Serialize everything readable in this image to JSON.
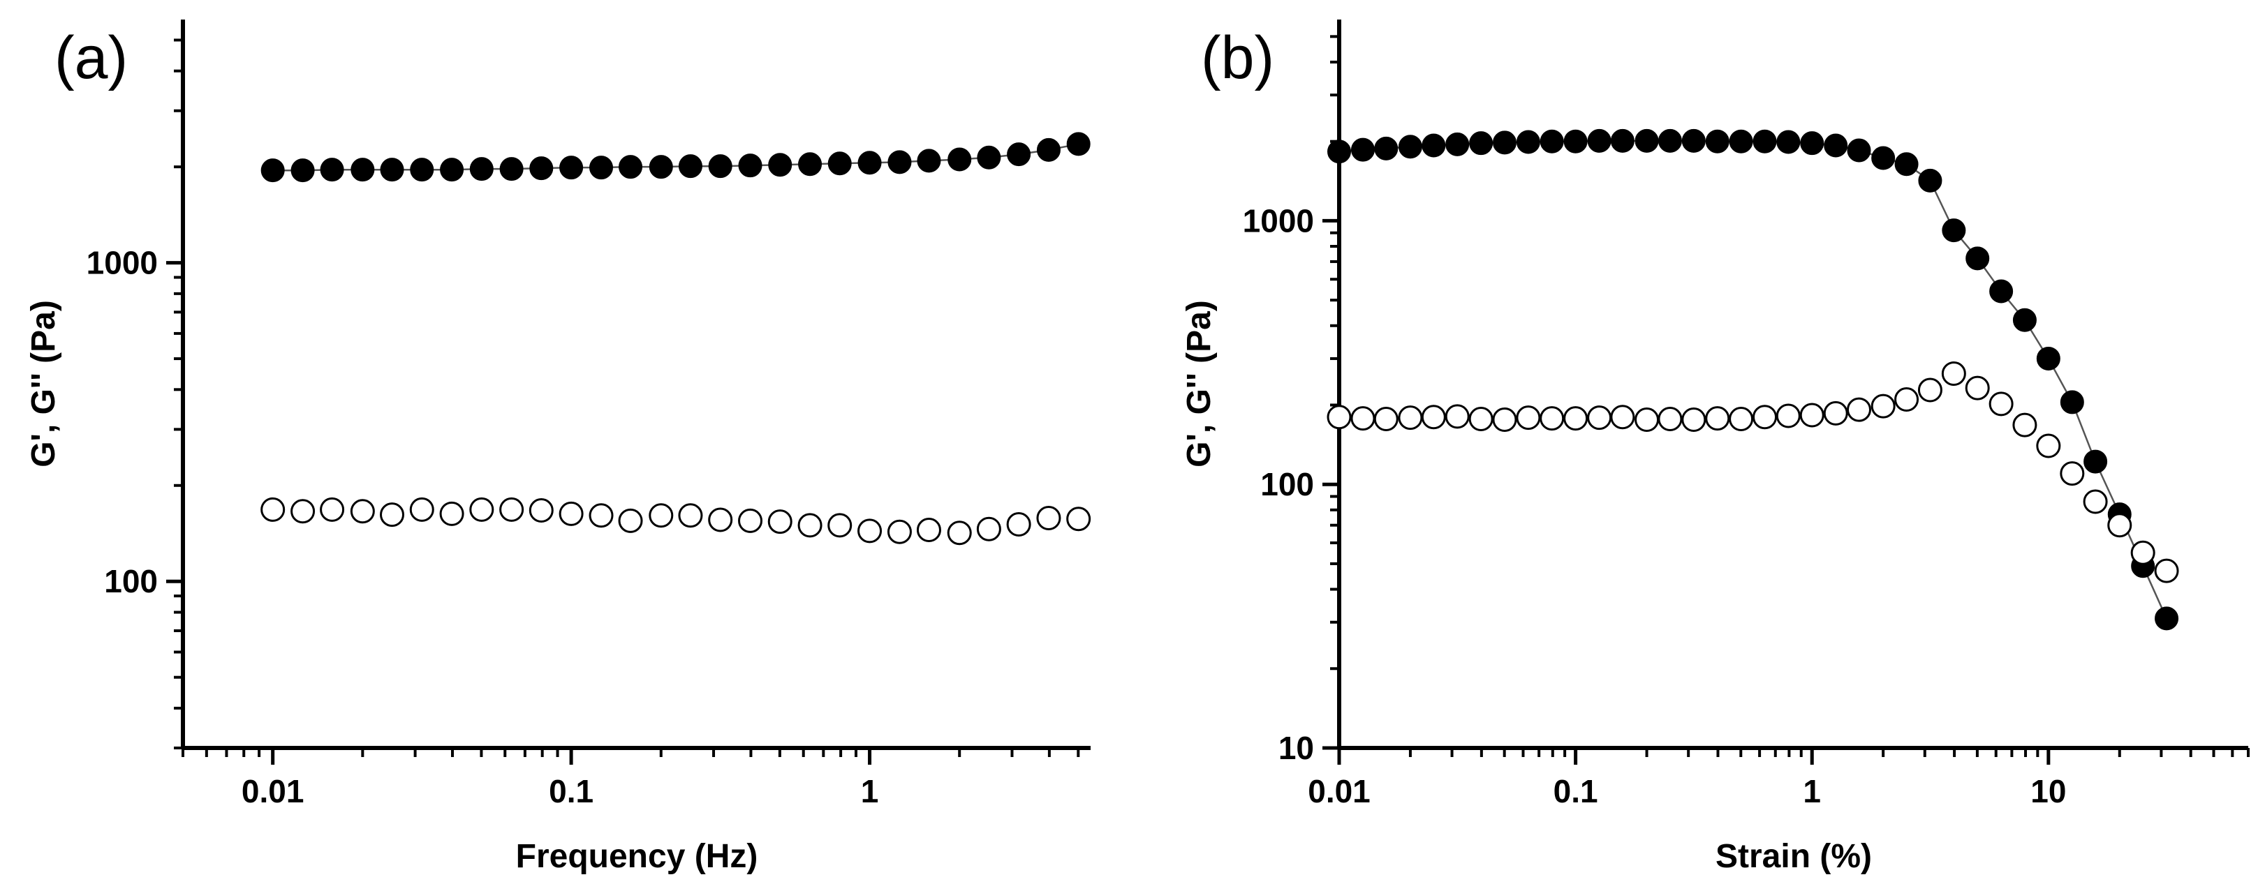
{
  "chart_data": [
    {
      "panel_label": "(a)",
      "type": "scatter",
      "xscale": "log",
      "yscale": "log",
      "xlabel": "Frequency (Hz)",
      "ylabel": "G', G'' (Pa)",
      "xlim": [
        0.005,
        5.5
      ],
      "ylim": [
        30,
        5800
      ],
      "x_ticks": [
        {
          "value": 0.01,
          "label": "0.01"
        },
        {
          "value": 0.1,
          "label": "0.1"
        },
        {
          "value": 1,
          "label": "1"
        }
      ],
      "y_ticks": [
        {
          "value": 100,
          "label": "100"
        },
        {
          "value": 1000,
          "label": "1000"
        }
      ],
      "x": [
        0.01,
        0.0126,
        0.0158,
        0.02,
        0.0251,
        0.0316,
        0.0398,
        0.0501,
        0.0631,
        0.0794,
        0.1,
        0.126,
        0.158,
        0.2,
        0.251,
        0.316,
        0.398,
        0.501,
        0.631,
        0.794,
        1,
        1.26,
        1.58,
        2,
        2.51,
        3.16,
        3.98,
        5.01
      ],
      "series": [
        {
          "name": "G'",
          "marker": "filled-circle",
          "line": true,
          "values": [
            1950,
            1950,
            1960,
            1960,
            1960,
            1960,
            1960,
            1970,
            1970,
            1980,
            1990,
            1990,
            2000,
            2000,
            2010,
            2010,
            2020,
            2030,
            2040,
            2050,
            2060,
            2070,
            2090,
            2110,
            2140,
            2190,
            2260,
            2360
          ]
        },
        {
          "name": "G''",
          "marker": "open-circle",
          "line": false,
          "values": [
            168,
            166,
            168,
            166,
            162,
            168,
            163,
            168,
            168,
            167,
            163,
            161,
            155,
            161,
            161,
            156,
            155,
            154,
            150,
            150,
            144,
            143,
            145,
            142,
            146,
            151,
            158,
            157
          ]
        }
      ]
    },
    {
      "panel_label": "(b)",
      "type": "scatter",
      "xscale": "log",
      "yscale": "log",
      "xlabel": "Strain (%)",
      "ylabel": "G', G'' (Pa)",
      "xlim": [
        0.01,
        70
      ],
      "ylim": [
        10,
        5800
      ],
      "x_ticks": [
        {
          "value": 0.01,
          "label": "0.01"
        },
        {
          "value": 0.1,
          "label": "0.1"
        },
        {
          "value": 1,
          "label": "1"
        },
        {
          "value": 10,
          "label": "10"
        }
      ],
      "y_ticks": [
        {
          "value": 10,
          "label": "10"
        },
        {
          "value": 100,
          "label": "100"
        },
        {
          "value": 1000,
          "label": "1000"
        }
      ],
      "x": [
        0.01,
        0.0126,
        0.0158,
        0.02,
        0.0251,
        0.0316,
        0.0398,
        0.0501,
        0.0631,
        0.0794,
        0.1,
        0.126,
        0.158,
        0.2,
        0.251,
        0.316,
        0.398,
        0.501,
        0.631,
        0.794,
        1,
        1.26,
        1.58,
        2,
        2.51,
        3.16,
        3.98,
        5.01,
        6.31,
        7.94,
        10,
        12.6,
        15.8,
        20,
        25.1,
        31.6
      ],
      "series": [
        {
          "name": "G'",
          "marker": "filled-circle",
          "line": true,
          "values": [
            1830,
            1860,
            1880,
            1910,
            1930,
            1950,
            1970,
            1980,
            1990,
            2000,
            2000,
            2010,
            2010,
            2010,
            2010,
            2010,
            2000,
            2000,
            2000,
            1990,
            1970,
            1930,
            1850,
            1730,
            1640,
            1420,
            920,
            720,
            540,
            420,
            300,
            205,
            122,
            77,
            49,
            31
          ]
        },
        {
          "name": "G''",
          "marker": "open-circle",
          "line": false,
          "values": [
            180,
            178,
            177,
            179,
            180,
            181,
            177,
            176,
            179,
            178,
            178,
            179,
            180,
            176,
            177,
            176,
            178,
            177,
            180,
            182,
            183,
            186,
            192,
            198,
            210,
            228,
            263,
            232,
            202,
            168,
            140,
            110,
            86,
            70,
            55,
            47
          ]
        }
      ]
    }
  ]
}
